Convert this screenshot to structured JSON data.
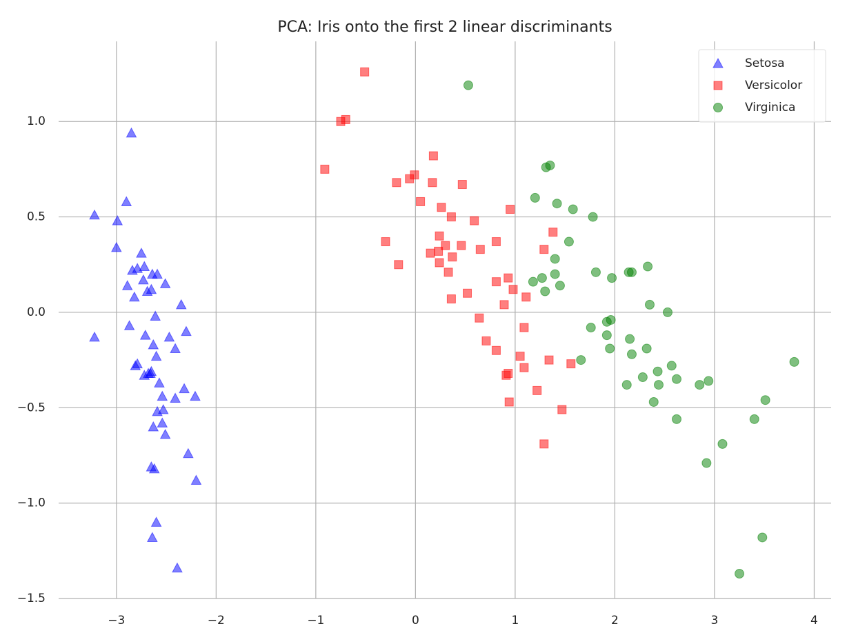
{
  "chart_data": {
    "type": "scatter",
    "title": "PCA: Iris onto the first 2 linear discriminants",
    "xlim": [
      -3.58,
      4.17
    ],
    "ylim": [
      -1.5,
      1.42
    ],
    "xticks": [
      {
        "value": -3,
        "label": "−3"
      },
      {
        "value": -2,
        "label": "−2"
      },
      {
        "value": -1,
        "label": "−1"
      },
      0,
      1,
      2,
      3,
      4
    ],
    "yticks": [
      {
        "value": -1.5,
        "label": "−1.5"
      },
      {
        "value": -1.0,
        "label": "−1.0"
      },
      {
        "value": -0.5,
        "label": "−0.5"
      },
      {
        "value": 0,
        "label": "0.0"
      },
      0.5,
      {
        "value": 1.0,
        "label": "1.0"
      }
    ],
    "grid": true,
    "legend": "upper right",
    "alpha": 0.5,
    "series": [
      {
        "name": "Setosa",
        "color": "blue",
        "marker": "^",
        "x": [
          -2.85,
          -3.22,
          -2.9,
          -2.99,
          -3.0,
          -2.75,
          -2.84,
          -2.79,
          -2.72,
          -2.89,
          -2.73,
          -2.64,
          -2.59,
          -2.51,
          -2.82,
          -2.69,
          -2.65,
          -2.35,
          -2.61,
          -3.22,
          -2.87,
          -2.71,
          -2.63,
          -2.47,
          -2.3,
          -2.41,
          -2.6,
          -2.79,
          -2.81,
          -2.72,
          -2.68,
          -2.65,
          -2.57,
          -2.54,
          -2.41,
          -2.32,
          -2.21,
          -2.53,
          -2.59,
          -2.54,
          -2.63,
          -2.51,
          -2.28,
          -2.65,
          -2.62,
          -2.2,
          -2.6,
          -2.64,
          -2.39,
          -2.66
        ],
        "values": [
          0.94,
          0.51,
          0.58,
          0.48,
          0.34,
          0.31,
          0.22,
          0.23,
          0.24,
          0.14,
          0.17,
          0.2,
          0.2,
          0.15,
          0.08,
          0.11,
          0.12,
          0.04,
          -0.02,
          -0.13,
          -0.07,
          -0.12,
          -0.17,
          -0.13,
          -0.1,
          -0.19,
          -0.23,
          -0.27,
          -0.28,
          -0.33,
          -0.32,
          -0.31,
          -0.37,
          -0.44,
          -0.45,
          -0.4,
          -0.44,
          -0.51,
          -0.52,
          -0.58,
          -0.6,
          -0.64,
          -0.74,
          -0.81,
          -0.82,
          -0.88,
          -1.1,
          -1.18,
          -1.34,
          -0.32
        ]
      },
      {
        "name": "Versicolor",
        "color": "red",
        "marker": "s",
        "x": [
          -0.51,
          -0.7,
          -0.75,
          -0.91,
          0.18,
          -0.19,
          -0.06,
          -0.01,
          0.17,
          0.47,
          0.05,
          0.26,
          0.95,
          0.36,
          0.59,
          -0.3,
          0.24,
          0.3,
          0.15,
          0.46,
          0.65,
          0.81,
          1.38,
          1.29,
          -0.17,
          0.37,
          0.24,
          0.33,
          0.81,
          0.93,
          0.98,
          1.11,
          0.36,
          0.52,
          0.89,
          0.64,
          0.71,
          0.81,
          1.09,
          1.05,
          0.91,
          0.93,
          1.34,
          1.56,
          1.09,
          1.22,
          0.94,
          1.47,
          1.29,
          0.23
        ],
        "values": [
          1.26,
          1.01,
          1.0,
          0.75,
          0.82,
          0.68,
          0.7,
          0.72,
          0.68,
          0.67,
          0.58,
          0.55,
          0.54,
          0.5,
          0.48,
          0.37,
          0.4,
          0.35,
          0.31,
          0.35,
          0.33,
          0.37,
          0.42,
          0.33,
          0.25,
          0.29,
          0.26,
          0.21,
          0.16,
          0.18,
          0.12,
          0.08,
          0.07,
          0.1,
          0.04,
          -0.03,
          -0.15,
          -0.2,
          -0.08,
          -0.23,
          -0.33,
          -0.32,
          -0.25,
          -0.27,
          -0.29,
          -0.41,
          -0.47,
          -0.51,
          -0.69,
          0.32
        ]
      },
      {
        "name": "Virginica",
        "color": "green",
        "marker": "o",
        "x": [
          0.53,
          1.35,
          1.31,
          1.2,
          1.42,
          1.58,
          1.78,
          1.54,
          1.4,
          1.81,
          2.33,
          2.14,
          2.17,
          1.97,
          1.4,
          1.18,
          1.27,
          1.3,
          1.45,
          2.53,
          2.35,
          1.76,
          1.92,
          1.96,
          1.92,
          2.15,
          1.95,
          2.32,
          2.17,
          1.66,
          2.57,
          2.43,
          2.28,
          2.12,
          2.44,
          2.62,
          2.85,
          2.94,
          3.8,
          2.39,
          3.51,
          3.4,
          2.62,
          3.08,
          2.92,
          3.48,
          3.25
        ],
        "values": [
          1.19,
          0.77,
          0.76,
          0.6,
          0.57,
          0.54,
          0.5,
          0.37,
          0.28,
          0.21,
          0.24,
          0.21,
          0.21,
          0.18,
          0.2,
          0.16,
          0.18,
          0.11,
          0.14,
          0.0,
          0.04,
          -0.08,
          -0.05,
          -0.04,
          -0.12,
          -0.14,
          -0.19,
          -0.19,
          -0.22,
          -0.25,
          -0.28,
          -0.31,
          -0.34,
          -0.38,
          -0.38,
          -0.35,
          -0.38,
          -0.36,
          -0.26,
          -0.47,
          -0.46,
          -0.56,
          -0.56,
          -0.69,
          -0.79,
          -1.18,
          -1.37
        ]
      }
    ]
  }
}
